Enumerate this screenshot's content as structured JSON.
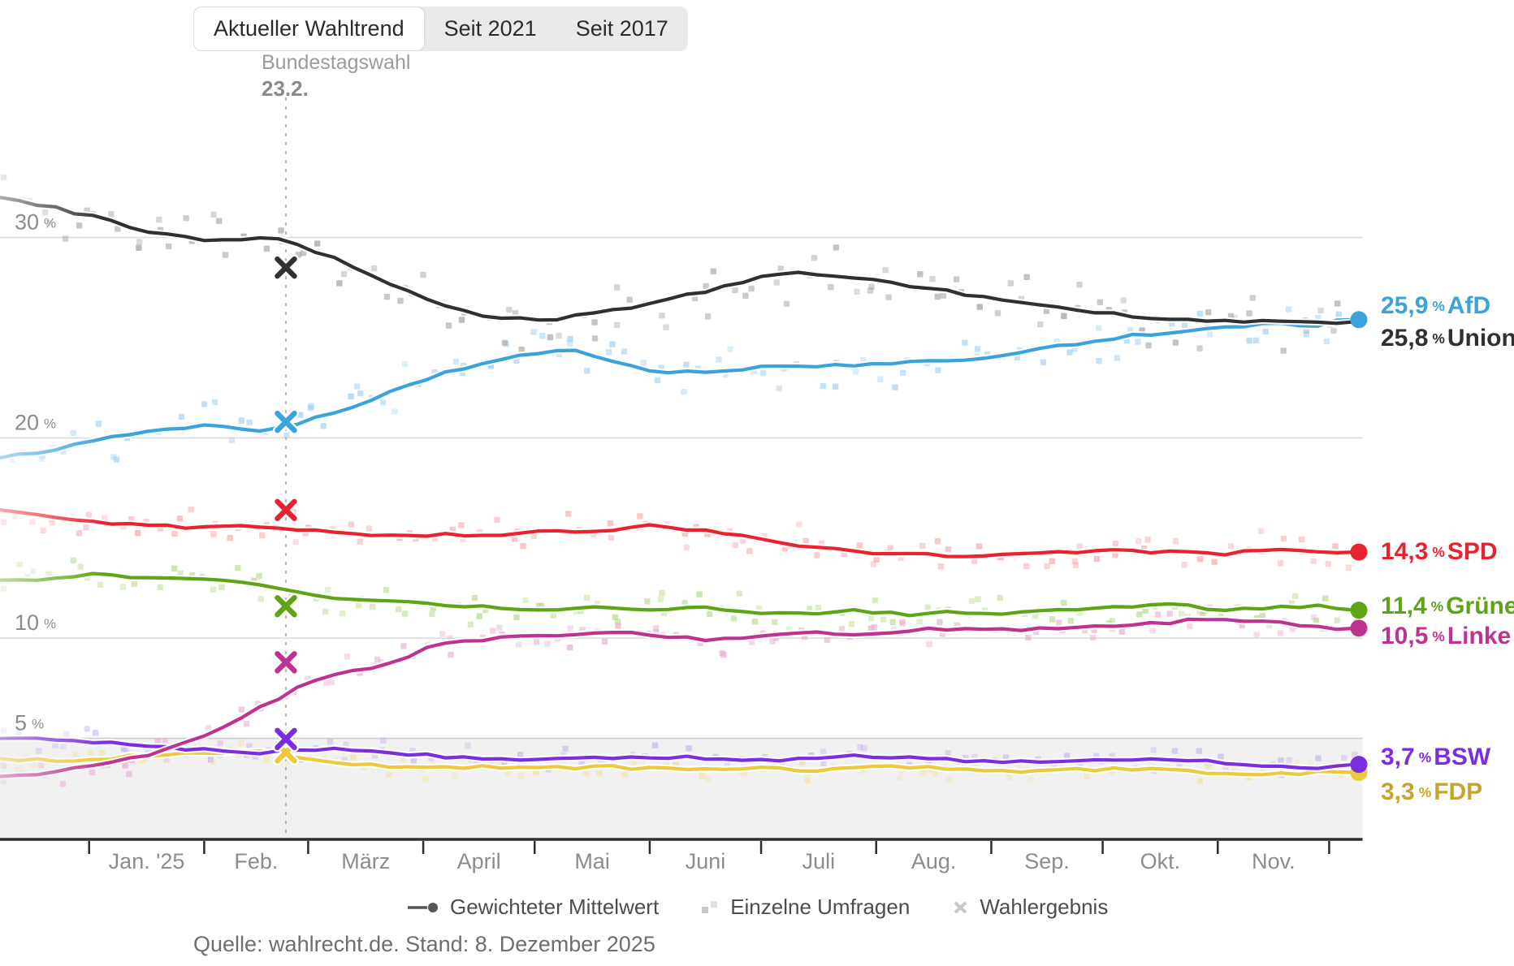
{
  "tabs": {
    "items": [
      {
        "label": "Aktueller Wahltrend",
        "active": true
      },
      {
        "label": "Seit 2021",
        "active": false
      },
      {
        "label": "Seit 2017",
        "active": false
      }
    ]
  },
  "annotation": {
    "title": "Bundestagswahl",
    "date": "23.2."
  },
  "percent_sign": "%",
  "source": "Quelle: wahlrecht.de. Stand: 8. Dezember 2025",
  "legend": {
    "items": [
      {
        "icon": "trend-line-icon",
        "label": "Gewichteter Mittelwert"
      },
      {
        "icon": "poll-squares-icon",
        "label": "Einzelne Umfragen"
      },
      {
        "icon": "cross-icon",
        "label": "Wahlergebnis"
      }
    ]
  },
  "chart_data": {
    "type": "line",
    "title": "Aktueller Wahltrend",
    "x_unit": "days since 2024-12-08",
    "days_total": 366,
    "ylim": [
      0,
      36.5
    ],
    "grid": true,
    "threshold_band": {
      "from": 0,
      "to": 5
    },
    "y_ticks": [
      {
        "value": 30,
        "label": "30"
      },
      {
        "value": 20,
        "label": "20"
      },
      {
        "value": 10,
        "label": "10"
      },
      {
        "value": 5,
        "label": "5"
      }
    ],
    "month_ticks": {
      "start_days": [
        24,
        55,
        83,
        114,
        144,
        175,
        205,
        236,
        267,
        297,
        328,
        358
      ],
      "labels": [
        "Jan. '25",
        "Feb.",
        "März",
        "April",
        "Mai",
        "Juni",
        "Juli",
        "Aug.",
        "Sep.",
        "Okt.",
        "Nov."
      ]
    },
    "election": {
      "day": 77,
      "annotation_title": "Bundestagswahl",
      "annotation_date": "23.2."
    },
    "series": [
      {
        "name": "AfD",
        "color": "#3BA3DB",
        "scatter_color": "#9FD0F0",
        "end_label": "25,9",
        "end_value": 25.9,
        "result": 20.8,
        "label_dy": -17,
        "dot": true,
        "scatter_amp": 1.3,
        "trend": [
          [
            0,
            19.0
          ],
          [
            14,
            19.4
          ],
          [
            28,
            20.0
          ],
          [
            42,
            20.3
          ],
          [
            56,
            20.6
          ],
          [
            70,
            20.4
          ],
          [
            77,
            20.6
          ],
          [
            91,
            21.3
          ],
          [
            105,
            22.3
          ],
          [
            119,
            23.2
          ],
          [
            133,
            23.9
          ],
          [
            147,
            24.3
          ],
          [
            154,
            24.4
          ],
          [
            161,
            24.1
          ],
          [
            168,
            23.7
          ],
          [
            175,
            23.4
          ],
          [
            189,
            23.2
          ],
          [
            203,
            23.5
          ],
          [
            217,
            23.6
          ],
          [
            231,
            23.6
          ],
          [
            245,
            23.8
          ],
          [
            259,
            23.9
          ],
          [
            273,
            24.2
          ],
          [
            287,
            24.6
          ],
          [
            301,
            25.0
          ],
          [
            315,
            25.3
          ],
          [
            329,
            25.5
          ],
          [
            343,
            25.7
          ],
          [
            354,
            25.6
          ],
          [
            360,
            25.8
          ],
          [
            365,
            25.9
          ]
        ]
      },
      {
        "name": "Union",
        "color": "#303030",
        "scatter_color": "#9E9E9E",
        "end_label": "25,8",
        "end_value": 25.8,
        "result": 28.5,
        "label_dy": 21,
        "dot": false,
        "scatter_amp": 1.7,
        "trend": [
          [
            0,
            32.0
          ],
          [
            14,
            31.5
          ],
          [
            28,
            30.9
          ],
          [
            42,
            30.2
          ],
          [
            56,
            29.9
          ],
          [
            70,
            30.0
          ],
          [
            77,
            29.8
          ],
          [
            91,
            28.9
          ],
          [
            105,
            27.7
          ],
          [
            119,
            26.6
          ],
          [
            133,
            26.0
          ],
          [
            147,
            25.9
          ],
          [
            161,
            26.2
          ],
          [
            175,
            26.7
          ],
          [
            189,
            27.3
          ],
          [
            203,
            27.9
          ],
          [
            213,
            28.3
          ],
          [
            224,
            28.1
          ],
          [
            238,
            27.8
          ],
          [
            252,
            27.4
          ],
          [
            266,
            27.0
          ],
          [
            280,
            26.6
          ],
          [
            294,
            26.3
          ],
          [
            308,
            26.0
          ],
          [
            322,
            25.9
          ],
          [
            336,
            25.8
          ],
          [
            350,
            25.8
          ],
          [
            358,
            25.7
          ],
          [
            365,
            25.8
          ]
        ]
      },
      {
        "name": "SPD",
        "color": "#E8232F",
        "scatter_color": "#F5A5A5",
        "end_label": "14,3",
        "end_value": 14.3,
        "result": 16.4,
        "label_dy": 0,
        "dot": true,
        "scatter_amp": 1.1,
        "trend": [
          [
            0,
            16.4
          ],
          [
            14,
            16.1
          ],
          [
            28,
            15.8
          ],
          [
            42,
            15.6
          ],
          [
            56,
            15.5
          ],
          [
            70,
            15.6
          ],
          [
            77,
            15.5
          ],
          [
            91,
            15.2
          ],
          [
            105,
            15.1
          ],
          [
            119,
            15.2
          ],
          [
            133,
            15.1
          ],
          [
            147,
            15.3
          ],
          [
            161,
            15.4
          ],
          [
            175,
            15.6
          ],
          [
            189,
            15.4
          ],
          [
            203,
            15.0
          ],
          [
            217,
            14.6
          ],
          [
            231,
            14.3
          ],
          [
            245,
            14.2
          ],
          [
            259,
            14.1
          ],
          [
            273,
            14.2
          ],
          [
            287,
            14.3
          ],
          [
            301,
            14.4
          ],
          [
            315,
            14.3
          ],
          [
            329,
            14.2
          ],
          [
            343,
            14.5
          ],
          [
            357,
            14.2
          ],
          [
            365,
            14.3
          ]
        ]
      },
      {
        "name": "Grüne",
        "color": "#5EA417",
        "scatter_color": "#B4D98A",
        "end_label": "11,4",
        "end_value": 11.4,
        "result": 11.6,
        "label_dy": -5,
        "dot": true,
        "scatter_amp": 1.0,
        "trend": [
          [
            0,
            12.9
          ],
          [
            14,
            13.0
          ],
          [
            28,
            13.2
          ],
          [
            42,
            13.0
          ],
          [
            56,
            12.9
          ],
          [
            70,
            12.7
          ],
          [
            77,
            12.4
          ],
          [
            91,
            12.0
          ],
          [
            105,
            11.8
          ],
          [
            119,
            11.7
          ],
          [
            133,
            11.5
          ],
          [
            147,
            11.4
          ],
          [
            161,
            11.5
          ],
          [
            175,
            11.4
          ],
          [
            189,
            11.5
          ],
          [
            203,
            11.3
          ],
          [
            217,
            11.2
          ],
          [
            231,
            11.4
          ],
          [
            245,
            11.2
          ],
          [
            259,
            11.3
          ],
          [
            273,
            11.2
          ],
          [
            287,
            11.4
          ],
          [
            301,
            11.6
          ],
          [
            315,
            11.7
          ],
          [
            329,
            11.4
          ],
          [
            343,
            11.5
          ],
          [
            357,
            11.6
          ],
          [
            365,
            11.4
          ]
        ]
      },
      {
        "name": "Linke",
        "color": "#BF3390",
        "scatter_color": "#E7A9D3",
        "end_label": "10,5",
        "end_value": 10.5,
        "result": 8.8,
        "label_dy": 10,
        "dot": true,
        "scatter_amp": 0.9,
        "trend": [
          [
            0,
            3.1
          ],
          [
            14,
            3.3
          ],
          [
            28,
            3.7
          ],
          [
            42,
            4.3
          ],
          [
            56,
            5.2
          ],
          [
            70,
            6.5
          ],
          [
            77,
            7.2
          ],
          [
            84,
            7.9
          ],
          [
            91,
            8.3
          ],
          [
            98,
            8.5
          ],
          [
            105,
            8.7
          ],
          [
            112,
            9.3
          ],
          [
            119,
            9.7
          ],
          [
            133,
            10.0
          ],
          [
            147,
            10.1
          ],
          [
            161,
            10.3
          ],
          [
            175,
            10.2
          ],
          [
            189,
            9.9
          ],
          [
            203,
            10.0
          ],
          [
            217,
            10.3
          ],
          [
            231,
            10.2
          ],
          [
            245,
            10.4
          ],
          [
            259,
            10.5
          ],
          [
            273,
            10.4
          ],
          [
            287,
            10.5
          ],
          [
            301,
            10.6
          ],
          [
            315,
            10.8
          ],
          [
            329,
            11.0
          ],
          [
            343,
            10.8
          ],
          [
            357,
            10.5
          ],
          [
            365,
            10.5
          ]
        ]
      },
      {
        "name": "BSW",
        "color": "#7A2EE0",
        "scatter_color": "#C8B0F0",
        "end_label": "3,7",
        "end_value": 3.7,
        "result": 4.97,
        "label_dy": -9,
        "dot": true,
        "scatter_amp": 0.7,
        "trend": [
          [
            0,
            5.0
          ],
          [
            14,
            4.9
          ],
          [
            28,
            4.8
          ],
          [
            42,
            4.6
          ],
          [
            56,
            4.4
          ],
          [
            70,
            4.3
          ],
          [
            77,
            4.4
          ],
          [
            91,
            4.5
          ],
          [
            105,
            4.3
          ],
          [
            119,
            4.1
          ],
          [
            133,
            4.0
          ],
          [
            147,
            3.9
          ],
          [
            161,
            4.0
          ],
          [
            175,
            4.1
          ],
          [
            189,
            4.0
          ],
          [
            203,
            3.9
          ],
          [
            217,
            4.0
          ],
          [
            231,
            4.1
          ],
          [
            245,
            4.0
          ],
          [
            259,
            3.9
          ],
          [
            273,
            3.8
          ],
          [
            287,
            3.9
          ],
          [
            301,
            4.0
          ],
          [
            315,
            3.9
          ],
          [
            329,
            3.8
          ],
          [
            343,
            3.6
          ],
          [
            357,
            3.5
          ],
          [
            365,
            3.7
          ]
        ]
      },
      {
        "name": "FDP",
        "color": "#EDC93D",
        "scatter_color": "#F3E3A2",
        "end_label": "3,3",
        "end_value": 3.3,
        "result": 4.3,
        "label_dy": 24,
        "dot": true,
        "scatter_amp": 0.7,
        "label_color": "#C9A42A",
        "trend": [
          [
            0,
            4.0
          ],
          [
            14,
            3.9
          ],
          [
            28,
            4.0
          ],
          [
            42,
            4.2
          ],
          [
            56,
            4.3
          ],
          [
            70,
            4.3
          ],
          [
            77,
            4.2
          ],
          [
            91,
            3.8
          ],
          [
            105,
            3.6
          ],
          [
            119,
            3.5
          ],
          [
            133,
            3.6
          ],
          [
            147,
            3.5
          ],
          [
            161,
            3.6
          ],
          [
            175,
            3.5
          ],
          [
            189,
            3.4
          ],
          [
            203,
            3.5
          ],
          [
            217,
            3.4
          ],
          [
            231,
            3.5
          ],
          [
            245,
            3.6
          ],
          [
            259,
            3.4
          ],
          [
            273,
            3.3
          ],
          [
            287,
            3.4
          ],
          [
            301,
            3.5
          ],
          [
            315,
            3.4
          ],
          [
            329,
            3.3
          ],
          [
            343,
            3.2
          ],
          [
            357,
            3.3
          ],
          [
            365,
            3.3
          ]
        ]
      }
    ]
  }
}
